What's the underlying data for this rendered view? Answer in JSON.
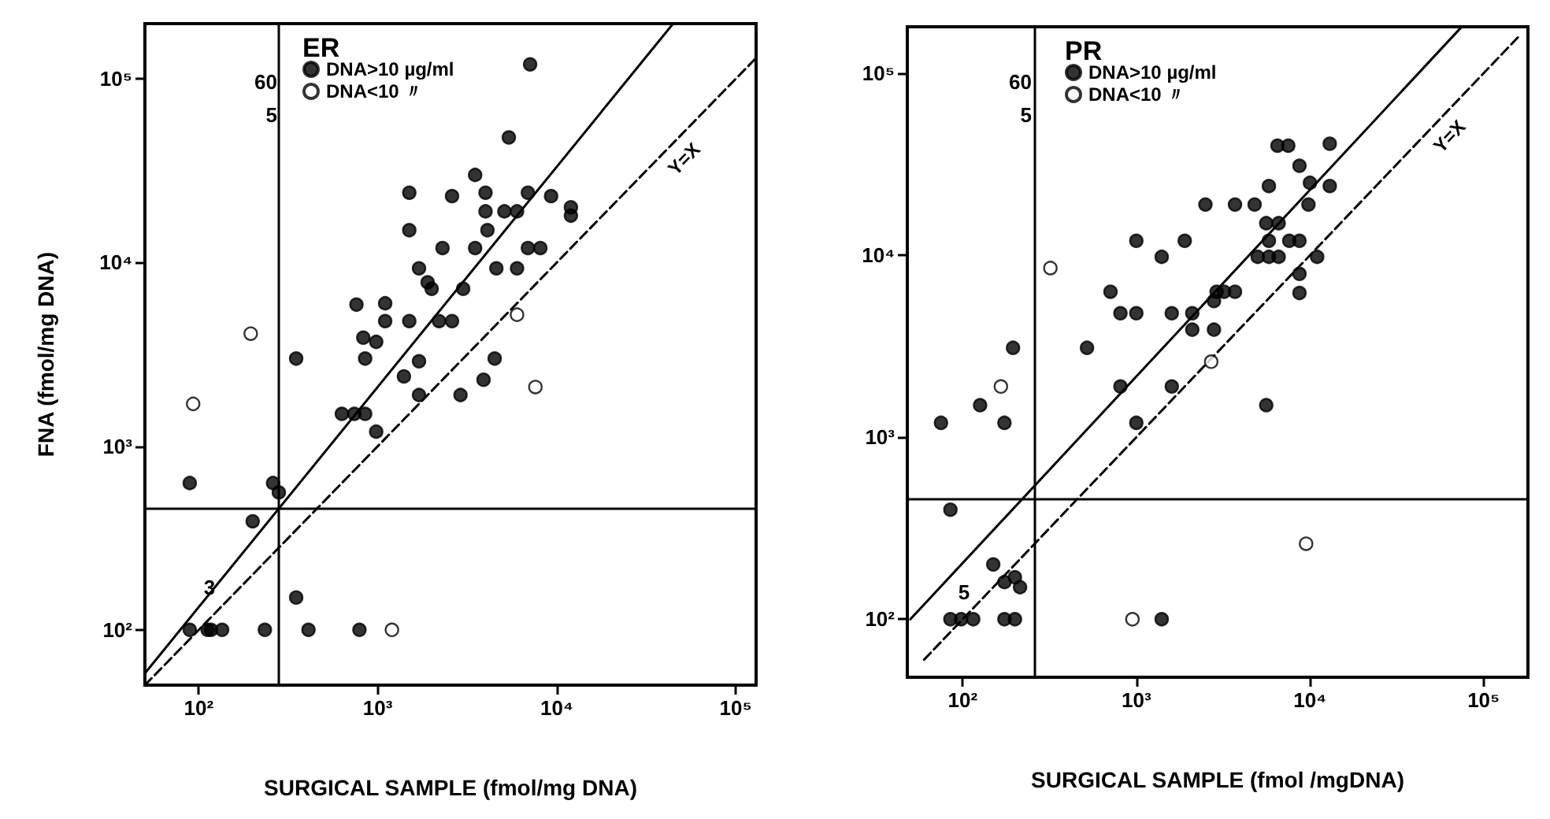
{
  "chart_data": [
    {
      "type": "scatter",
      "title": "ER",
      "xlabel": "SURGICAL SAMPLE (fmol/mg DNA)",
      "ylabel": "FNA (fmol/mg DNA)",
      "log": "xy",
      "grid": false,
      "legend": "top left",
      "xlim": [
        50,
        130000
      ],
      "ylim": [
        50,
        200000
      ],
      "xticks": [
        {
          "value": 100,
          "label": "10²"
        },
        {
          "value": 1000,
          "label": "10³"
        },
        {
          "value": 10000,
          "label": "10⁴"
        },
        {
          "value": 100000,
          "label": "10⁵"
        }
      ],
      "yticks": [
        {
          "value": 100,
          "label": "10²"
        },
        {
          "value": 1000,
          "label": "10³"
        },
        {
          "value": 10000,
          "label": "10⁴"
        },
        {
          "value": 100000,
          "label": "10⁵"
        }
      ],
      "ref_lines": [
        {
          "axis": "x",
          "value": 280,
          "color": "#000000"
        },
        {
          "axis": "y",
          "value": 460,
          "color": "#000000"
        }
      ],
      "annotations": [
        "60",
        "5",
        "3"
      ],
      "series": [
        {
          "name": "DNA>10 µg/ml",
          "type": "scatter",
          "marker": "circle",
          "color": "#000000",
          "x": [
            7100,
            5400,
            3500,
            1500,
            2600,
            4000,
            6900,
            9300,
            12000,
            12000,
            4000,
            5100,
            6000,
            1500,
            4100,
            2300,
            3500,
            6900,
            8100,
            1700,
            4600,
            6000,
            1900,
            2000,
            3000,
            760,
            1100,
            1100,
            1500,
            2200,
            2600,
            830,
            980,
            350,
            850,
            1700,
            4500,
            1400,
            3900,
            1700,
            2900,
            630,
            740,
            850,
            980,
            89,
            260,
            280,
            200,
            350,
            89,
            112,
            117,
            135,
            234,
            410,
            790
          ],
          "values": [
            120000,
            48000,
            30000,
            24000,
            23000,
            24000,
            24000,
            23000,
            20000,
            18000,
            19000,
            19000,
            19000,
            15000,
            15000,
            12000,
            12000,
            12000,
            12000,
            9300,
            9300,
            9300,
            7800,
            7200,
            7200,
            5900,
            6000,
            4800,
            4800,
            4800,
            4800,
            3900,
            3700,
            3000,
            3000,
            2900,
            3000,
            2400,
            2300,
            1900,
            1900,
            1500,
            1500,
            1500,
            1200,
            630,
            630,
            560,
            390,
            150,
            100,
            100,
            100,
            100,
            100,
            100,
            100
          ]
        },
        {
          "name": "DNA<10 〃",
          "type": "scatter",
          "marker": "circle",
          "color": "#ffffff",
          "x": [
            195,
            6000,
            7600,
            93,
            1200
          ],
          "values": [
            4100,
            5200,
            2100,
            1700,
            100
          ]
        },
        {
          "type": "line",
          "marker": "none",
          "line_style": "solid",
          "color": "#000000",
          "x": [
            50,
            44700
          ],
          "values": [
            58,
            200000
          ]
        },
        {
          "name": "Y=X",
          "type": "line",
          "marker": "none",
          "line_style": "dashed",
          "color": "#000000",
          "x": [
            50,
            130000
          ],
          "values": [
            50,
            130000
          ]
        }
      ]
    },
    {
      "type": "scatter",
      "title": "PR",
      "xlabel": "SURGICAL SAMPLE (fmol /mgDNA)",
      "log": "xy",
      "grid": false,
      "legend": "top left",
      "xlim": [
        48,
        180000
      ],
      "ylim": [
        48,
        180000
      ],
      "xticks": [
        {
          "value": 100,
          "label": "10²"
        },
        {
          "value": 1000,
          "label": "10³"
        },
        {
          "value": 10000,
          "label": "10⁴"
        },
        {
          "value": 100000,
          "label": "10⁵"
        }
      ],
      "yticks": [
        {
          "value": 100,
          "label": "10²"
        },
        {
          "value": 1000,
          "label": "10³"
        },
        {
          "value": 10000,
          "label": "10⁴"
        },
        {
          "value": 100000,
          "label": "10⁵"
        }
      ],
      "ref_lines": [
        {
          "axis": "x",
          "value": 260,
          "color": "#000000"
        },
        {
          "axis": "y",
          "value": 460,
          "color": "#000000"
        }
      ],
      "annotations": [
        "60",
        "5",
        "5"
      ],
      "series": [
        {
          "name": "DNA>10 µg/ml",
          "type": "scatter",
          "marker": "circle",
          "color": "#000000",
          "x": [
            6500,
            7500,
            13000,
            8700,
            5800,
            10000,
            13000,
            2500,
            3700,
            4800,
            9800,
            5600,
            6600,
            5800,
            7600,
            8700,
            1000,
            1900,
            1400,
            5000,
            5800,
            6600,
            11000,
            8700,
            8700,
            710,
            2900,
            3200,
            3700,
            2800,
            810,
            1000,
            1600,
            2100,
            2100,
            2800,
            520,
            195,
            810,
            1600,
            1000,
            5600,
            75,
            126,
            174,
            85,
            150,
            174,
            200,
            214,
            85,
            98,
            115,
            174,
            200,
            1400
          ],
          "values": [
            40000,
            40000,
            41000,
            31000,
            24000,
            25000,
            24000,
            19000,
            19000,
            19000,
            19000,
            15000,
            15000,
            12000,
            12000,
            12000,
            12000,
            12000,
            9800,
            9800,
            9800,
            9800,
            9800,
            7900,
            6200,
            6300,
            6300,
            6300,
            6300,
            5600,
            4800,
            4800,
            4800,
            4800,
            3900,
            3900,
            3100,
            3100,
            1900,
            1900,
            1200,
            1500,
            1200,
            1500,
            1200,
            400,
            200,
            160,
            170,
            150,
            100,
            100,
            100,
            100,
            100,
            100
          ]
        },
        {
          "name": "DNA<10 〃",
          "type": "scatter",
          "marker": "circle",
          "color": "#ffffff",
          "x": [
            320,
            2700,
            166,
            950,
            9500
          ],
          "values": [
            8500,
            2600,
            1900,
            100,
            260
          ]
        },
        {
          "type": "line",
          "marker": "none",
          "line_style": "solid",
          "color": "#000000",
          "x": [
            50,
            74000
          ],
          "values": [
            100,
            178000
          ]
        },
        {
          "name": "Y=X",
          "type": "line",
          "marker": "none",
          "line_style": "dashed",
          "color": "#000000",
          "x": [
            60,
            160000
          ],
          "values": [
            60,
            160000
          ]
        }
      ]
    }
  ]
}
